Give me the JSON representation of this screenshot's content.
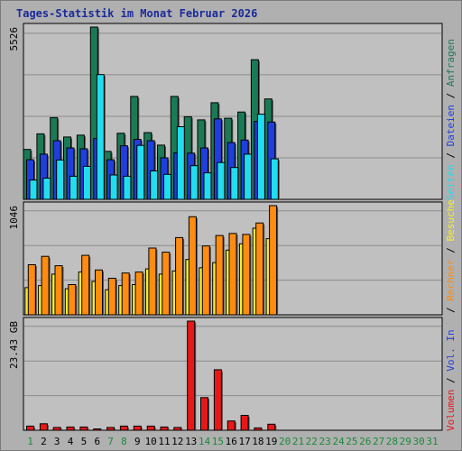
{
  "title": "Tages-Statistik im Monat Februar 2026",
  "colors": {
    "background": "#b0b0b0",
    "plot_bg": "#c0c0c0",
    "anfragen": "#1b7a56",
    "dateien": "#1f3fdc",
    "seiten": "#22dcf0",
    "besuche": "#f4ee2a",
    "rechner": "#ff8c10",
    "volumen": "#e81818",
    "in": "#1f3fdc",
    "out": "#1b7a56",
    "weekday": "#000000",
    "weekend": "#1b8a3a",
    "future": "#1b8a3a"
  },
  "chart_data": [
    {
      "type": "bar",
      "name": "hits",
      "max_label": "5526",
      "ylim": [
        0,
        5526
      ],
      "grid": true,
      "legend": {
        "anfragen": "Anfragen",
        "dateien": "Dateien",
        "seiten": "Seiten",
        "sep": "/"
      },
      "categories": [
        "1",
        "2",
        "3",
        "4",
        "5",
        "6",
        "7",
        "8",
        "9",
        "10",
        "11",
        "12",
        "13",
        "14",
        "15",
        "16",
        "17",
        "18",
        "19"
      ],
      "series": [
        {
          "key": "anfragen",
          "name": "Anfragen",
          "values": [
            1600,
            2100,
            2620,
            2000,
            2060,
            5526,
            1540,
            2120,
            3300,
            2140,
            1740,
            3300,
            2650,
            2550,
            3100,
            2600,
            2800,
            4480,
            3220
          ]
        },
        {
          "key": "dateien",
          "name": "Dateien",
          "values": [
            1270,
            1450,
            1880,
            1650,
            1620,
            1950,
            1270,
            1720,
            1920,
            1880,
            1330,
            1490,
            1480,
            1650,
            2580,
            1820,
            1900,
            2500,
            2480
          ]
        },
        {
          "key": "seiten",
          "name": "Seiten",
          "values": [
            620,
            680,
            1260,
            740,
            1060,
            4000,
            780,
            740,
            1730,
            910,
            800,
            2330,
            1080,
            850,
            1180,
            1020,
            1450,
            2730,
            1300
          ]
        }
      ]
    },
    {
      "type": "bar",
      "name": "visits",
      "max_label": "1046",
      "ylim": [
        0,
        1046
      ],
      "grid": true,
      "legend": {
        "besuche": "Besuche",
        "rechner": "Rechner",
        "sep": "/"
      },
      "categories": [
        "1",
        "2",
        "3",
        "4",
        "5",
        "6",
        "7",
        "8",
        "9",
        "10",
        "11",
        "12",
        "13",
        "14",
        "15",
        "16",
        "17",
        "18",
        "19"
      ],
      "series": [
        {
          "key": "besuche",
          "name": "Besuche",
          "values": [
            260,
            280,
            390,
            250,
            410,
            320,
            240,
            280,
            290,
            440,
            390,
            420,
            530,
            450,
            500,
            620,
            680,
            830,
            730
          ]
        },
        {
          "key": "rechner",
          "name": "Rechner",
          "values": [
            480,
            560,
            470,
            290,
            570,
            430,
            350,
            400,
            410,
            640,
            600,
            740,
            940,
            660,
            760,
            780,
            770,
            880,
            1046
          ]
        }
      ]
    },
    {
      "type": "bar",
      "name": "volume",
      "max_label": "23.43 GB",
      "ylim": [
        0,
        23.43
      ],
      "grid": true,
      "legend": {
        "volumen": "Volumen",
        "in": "Vol. In",
        "out": "Vol. Out",
        "sep": "/"
      },
      "categories": [
        "1",
        "2",
        "3",
        "4",
        "5",
        "6",
        "7",
        "8",
        "9",
        "10",
        "11",
        "12",
        "13",
        "14",
        "15",
        "16",
        "17",
        "18",
        "19"
      ],
      "series": [
        {
          "key": "volumen",
          "name": "Volumen",
          "values": [
            0.9,
            1.4,
            0.6,
            0.7,
            0.7,
            0.3,
            0.6,
            0.9,
            0.9,
            0.9,
            0.7,
            0.6,
            23.43,
            7.0,
            13.0,
            2.0,
            3.2,
            0.5,
            1.3
          ]
        }
      ]
    }
  ],
  "x_axis": {
    "days": [
      "1",
      "2",
      "3",
      "4",
      "5",
      "6",
      "7",
      "8",
      "9",
      "10",
      "11",
      "12",
      "13",
      "14",
      "15",
      "16",
      "17",
      "18",
      "19",
      "20",
      "21",
      "22",
      "23",
      "24",
      "25",
      "26",
      "27",
      "28",
      "29",
      "30",
      "31"
    ],
    "weekend_days": [
      "1",
      "7",
      "8",
      "14",
      "15",
      "21",
      "22",
      "28",
      "29"
    ],
    "future_days": [
      "20",
      "21",
      "22",
      "23",
      "24",
      "25",
      "26",
      "27",
      "28",
      "29",
      "30",
      "31"
    ]
  }
}
